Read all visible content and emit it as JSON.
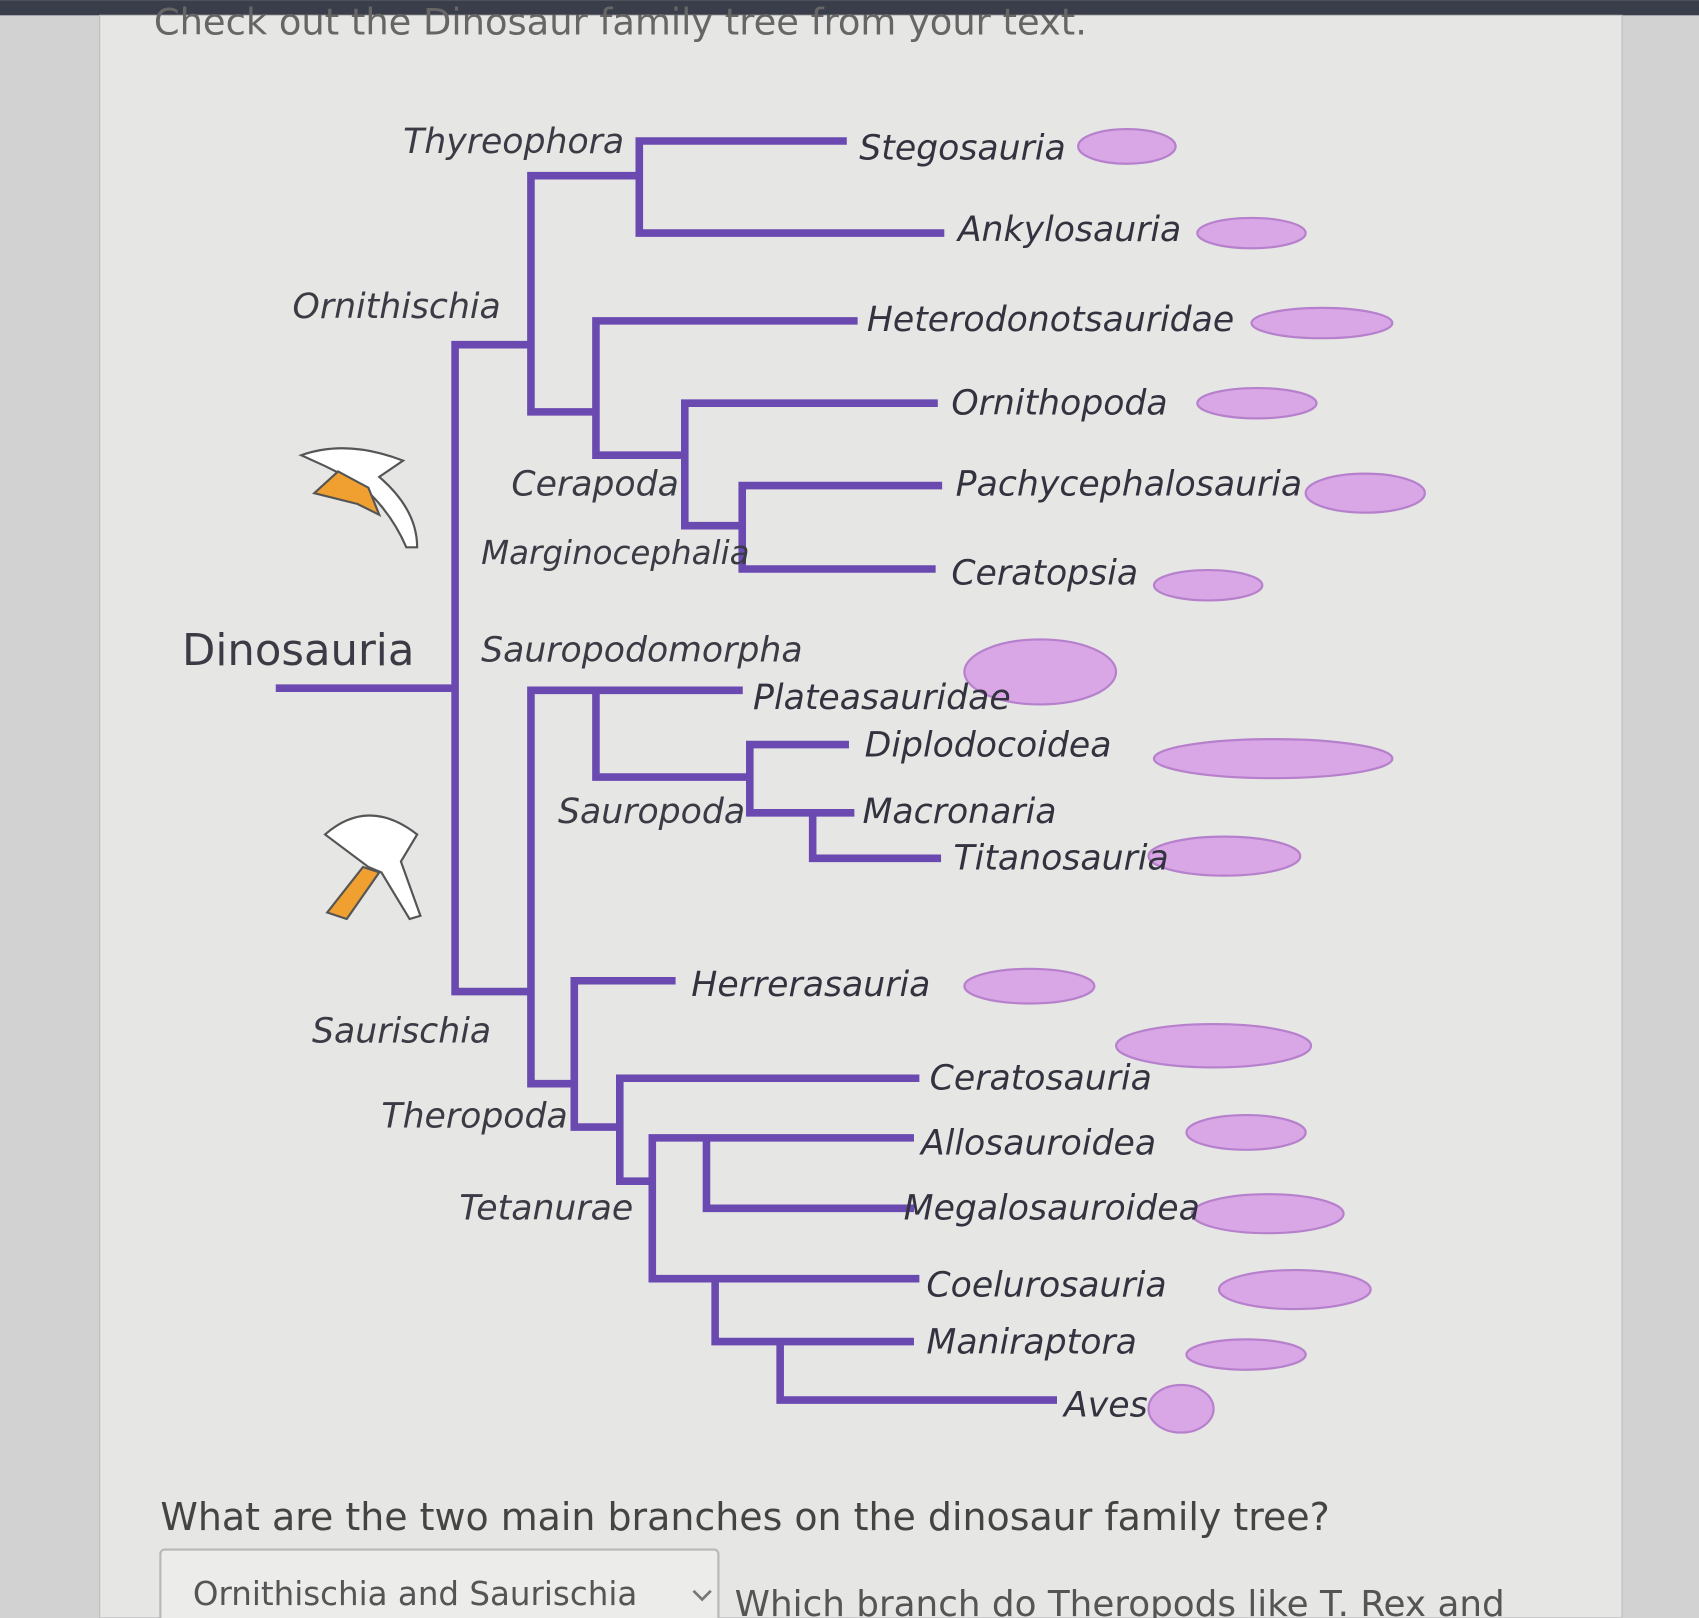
{
  "header": {
    "instruction": "Check out the Dinosaur family tree from your text."
  },
  "tree": {
    "root": "Dinosauria",
    "clades": [
      "Ornithischia",
      "Saurischia",
      "Thyreophora",
      "Cerapoda",
      "Marginocephalia",
      "Sauropodomorpha",
      "Sauropoda",
      "Theropoda",
      "Tetanurae"
    ],
    "leaves": [
      "Stegosauria",
      "Ankylosauria",
      "Heterodonotsauridae",
      "Ornithopoda",
      "Pachycephalosauria",
      "Ceratopsia",
      "Plateasauridae",
      "Diplodocoidea",
      "Macronaria",
      "Titanosauria",
      "Herrerasauria",
      "Ceratosauria",
      "Allosauroidea",
      "Megalosauroidea",
      "Coelurosauria",
      "Maniraptora",
      "Aves"
    ]
  },
  "question_1": {
    "text": "What are the two main branches on the dinosaur family tree?",
    "answer": "Ornithischia and Saurischia"
  },
  "question_2": {
    "text": "Which branch do Theropods like T. Rex and"
  }
}
